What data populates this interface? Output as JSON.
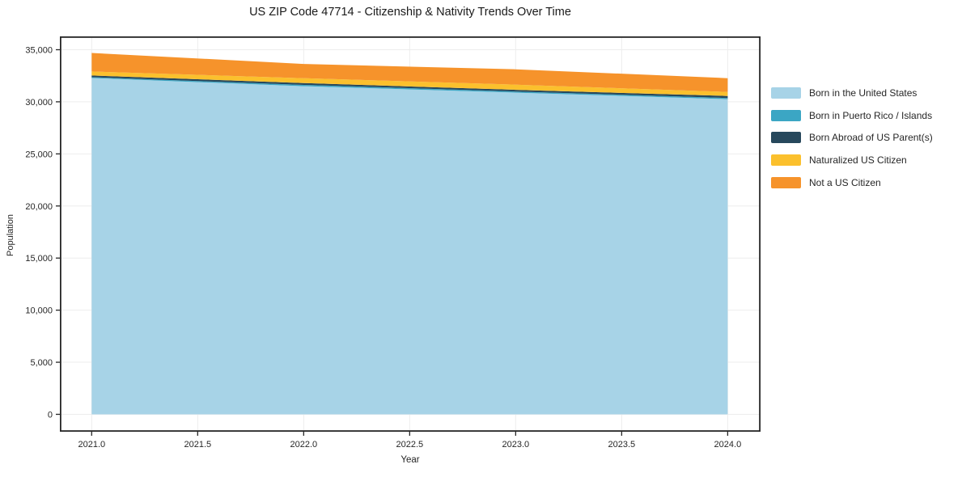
{
  "chart_data": {
    "type": "area",
    "stacked": true,
    "title": "US ZIP Code 47714 - Citizenship & Nativity Trends Over Time",
    "xlabel": "Year",
    "ylabel": "Population",
    "x": [
      2021,
      2022,
      2023,
      2024
    ],
    "series": [
      {
        "name": "Born in the United States",
        "color": "#a7d3e7",
        "values": [
          32280,
          31500,
          30880,
          30260
        ]
      },
      {
        "name": "Born in Puerto Rico / Islands",
        "color": "#3ba6c4",
        "values": [
          80,
          120,
          110,
          110
        ]
      },
      {
        "name": "Born Abroad of US Parent(s)",
        "color": "#27485c",
        "values": [
          160,
          180,
          160,
          190
        ]
      },
      {
        "name": "Naturalized US Citizen",
        "color": "#fbc02d",
        "values": [
          390,
          470,
          500,
          390
        ]
      },
      {
        "name": "Not a US Citizen",
        "color": "#f6932b",
        "values": [
          1780,
          1360,
          1470,
          1320
        ]
      }
    ],
    "totals": [
      34690,
      33630,
      33120,
      32270
    ],
    "xlim": [
      2020.85,
      2024.155
    ],
    "ylim": [
      -1670,
      36280
    ],
    "xticks": {
      "values": [
        2021.0,
        2021.5,
        2022.0,
        2022.5,
        2023.0,
        2023.5,
        2024.0
      ],
      "labels": [
        "2021.0",
        "2021.5",
        "2022.0",
        "2022.5",
        "2023.0",
        "2023.5",
        "2024.0"
      ]
    },
    "yticks": {
      "values": [
        0,
        5000,
        10000,
        15000,
        20000,
        25000,
        30000,
        35000
      ],
      "labels": [
        "0",
        "5,000",
        "10,000",
        "15,000",
        "20,000",
        "25,000",
        "30,000",
        "35,000"
      ]
    },
    "grid": true,
    "legend_position": "right of plot, frameless"
  },
  "style": {
    "background": "#ffffff",
    "axis_color": "#262626",
    "grid_color": "#ededed",
    "tick_label_color": "#262626",
    "title_color": "#1a1a1a"
  }
}
